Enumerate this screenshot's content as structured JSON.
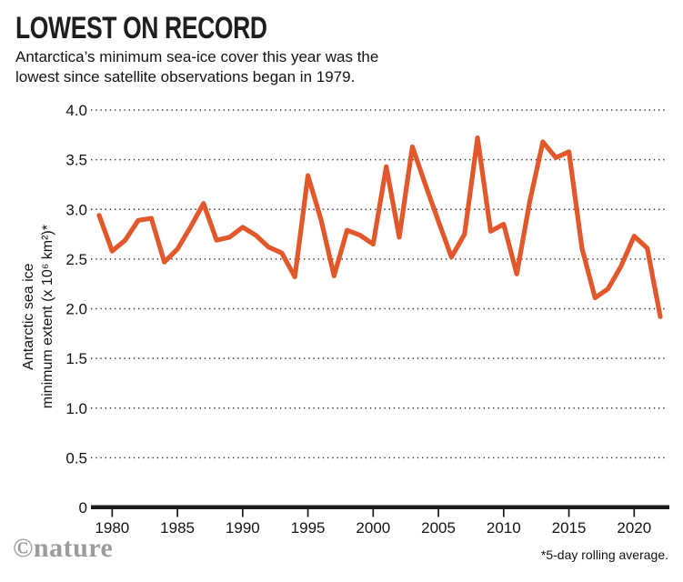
{
  "header": {
    "title": "LOWEST ON RECORD",
    "subtitle_line1": "Antarctica’s minimum sea-ice cover this year was the",
    "subtitle_line2": "lowest since satellite observations began in 1979."
  },
  "footer": {
    "brand": "©nature",
    "footnote": "*5-day rolling average."
  },
  "chart_data": {
    "type": "line",
    "title": "LOWEST ON RECORD",
    "series_name": "Antarctic sea ice minimum extent (5-day rolling average)",
    "ylabel_line1": "Antarctic sea ice",
    "ylabel_line2": "minimum extent (x 10⁶ km²)*",
    "xlabel": "",
    "xlim": [
      1979,
      2022
    ],
    "ylim": [
      0,
      4.0
    ],
    "grid": "horizontal dotted",
    "legend": "none",
    "line_color": "#E2582A",
    "axis_color": "#1a1a1a",
    "x": [
      1979,
      1980,
      1981,
      1982,
      1983,
      1984,
      1985,
      1986,
      1987,
      1988,
      1989,
      1990,
      1991,
      1992,
      1993,
      1994,
      1995,
      1996,
      1997,
      1998,
      1999,
      2000,
      2001,
      2002,
      2003,
      2004,
      2005,
      2006,
      2007,
      2008,
      2009,
      2010,
      2011,
      2012,
      2013,
      2014,
      2015,
      2016,
      2017,
      2018,
      2019,
      2020,
      2021,
      2022
    ],
    "values": [
      2.94,
      2.58,
      2.69,
      2.89,
      2.91,
      2.47,
      2.6,
      2.82,
      3.06,
      2.69,
      2.72,
      2.82,
      2.74,
      2.62,
      2.56,
      2.32,
      3.34,
      2.9,
      2.33,
      2.79,
      2.74,
      2.65,
      3.43,
      2.72,
      3.63,
      3.25,
      2.88,
      2.52,
      2.75,
      3.72,
      2.78,
      2.85,
      2.35,
      3.08,
      3.68,
      3.52,
      3.58,
      2.61,
      2.11,
      2.2,
      2.43,
      2.73,
      2.61,
      1.92
    ],
    "x_ticks": [
      1980,
      1985,
      1990,
      1995,
      2000,
      2005,
      2010,
      2015,
      2020
    ],
    "y_ticks": [
      {
        "label": "0",
        "value": 0
      },
      {
        "label": "0.5",
        "value": 0.5
      },
      {
        "label": "1.0",
        "value": 1.0
      },
      {
        "label": "1.5",
        "value": 1.5
      },
      {
        "label": "2.0",
        "value": 2.0
      },
      {
        "label": "2.5",
        "value": 2.5
      },
      {
        "label": "3.0",
        "value": 3.0
      },
      {
        "label": "3.5",
        "value": 3.5
      },
      {
        "label": "4.0",
        "value": 4.0
      }
    ]
  }
}
